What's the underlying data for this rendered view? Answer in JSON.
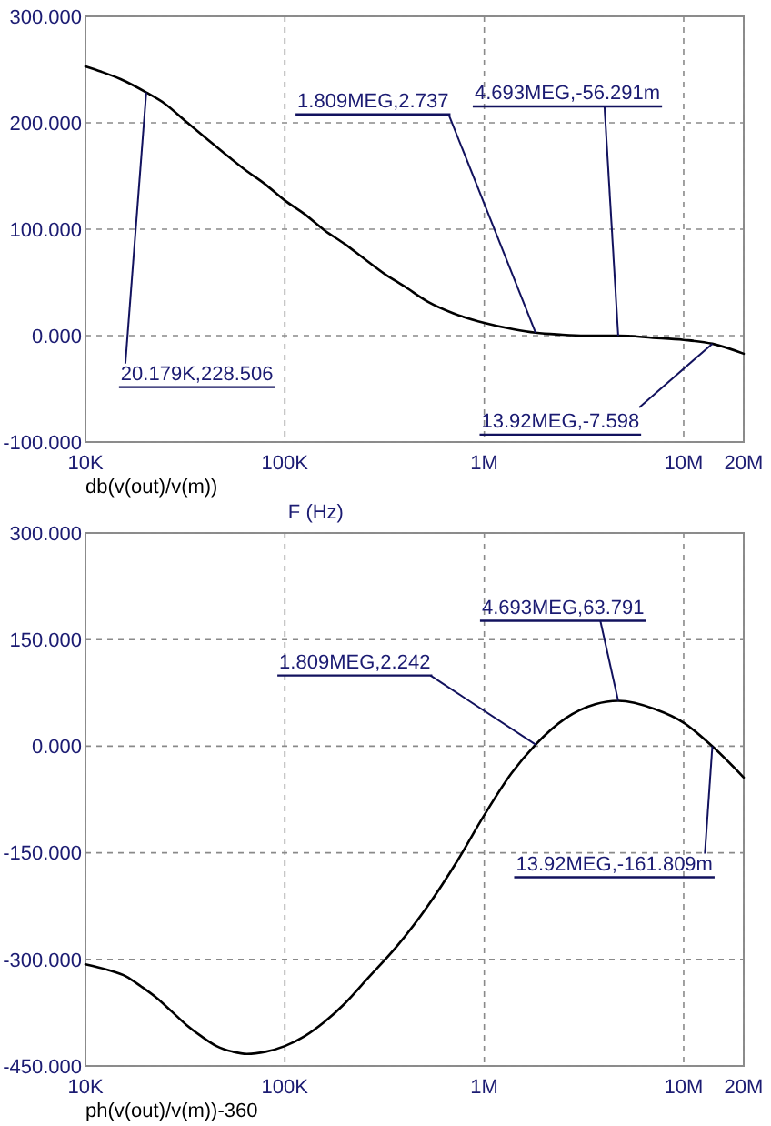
{
  "chart_data": [
    {
      "type": "line",
      "xlabel": "F (Hz)",
      "log": "x",
      "grid": true,
      "legend": "bottom left",
      "x": [
        10000,
        12000,
        15000,
        20179,
        25000,
        32000,
        40000,
        50000,
        63000,
        80000,
        100000,
        126000,
        158000,
        200000,
        251000,
        316000,
        400000,
        520000,
        700000,
        1000000,
        1400000,
        1809000,
        2400000,
        3200000,
        4693000,
        7000000,
        10000000,
        13920000,
        20000000
      ],
      "series": [
        {
          "name": "db(v(out)/v(m))",
          "color": "#000000",
          "values": [
            253,
            248,
            241,
            228.506,
            218,
            201,
            186,
            171,
            156,
            142,
            127,
            114,
            99,
            86,
            72,
            58,
            46,
            32,
            21,
            12,
            6,
            2.737,
            1,
            0,
            -0.056291,
            -2,
            -4,
            -7.598,
            -17
          ]
        }
      ],
      "xlim": [
        10000,
        20000000
      ],
      "xticks": [
        {
          "value": 10000,
          "label": "10K"
        },
        {
          "value": 100000,
          "label": "100K"
        },
        {
          "value": 1000000,
          "label": "1M"
        },
        {
          "value": 10000000,
          "label": "10M"
        },
        {
          "value": 20000000,
          "label": "20M"
        }
      ],
      "ylim": [
        -100,
        300
      ],
      "yticks": [
        {
          "value": -100,
          "label": "-100.000"
        },
        {
          "value": 0,
          "label": "0.000"
        },
        {
          "value": 100,
          "label": "100.000"
        },
        {
          "value": 200,
          "label": "200.000"
        },
        {
          "value": 300,
          "label": "300.000"
        }
      ],
      "annotations": [
        {
          "text": "20.179K,228.506",
          "x": 20179,
          "y": 228.506
        },
        {
          "text": "1.809MEG,2.737",
          "x": 1809000,
          "y": 2.737
        },
        {
          "text": "4.693MEG,-56.291m",
          "x": 4693000,
          "y": -0.056291
        },
        {
          "text": "13.92MEG,-7.598",
          "x": 13920000,
          "y": -7.598
        }
      ]
    },
    {
      "type": "line",
      "log": "x",
      "grid": true,
      "legend": "bottom left",
      "x": [
        10000,
        13000,
        16000,
        19000,
        22700,
        27000,
        32000,
        38000,
        45400,
        55000,
        64500,
        80000,
        100000,
        126000,
        158000,
        200000,
        258000,
        366000,
        517000,
        730000,
        1000000,
        1370000,
        1809000,
        2550000,
        3600000,
        4693000,
        7200000,
        10000000,
        13920000,
        20000000
      ],
      "series": [
        {
          "name": "ph(v(out)/v(m))-360",
          "color": "#000000",
          "values": [
            -307,
            -315,
            -324,
            -338,
            -354,
            -373,
            -392,
            -408,
            -422,
            -430,
            -433,
            -430,
            -422,
            -408,
            -388,
            -362,
            -328,
            -281,
            -226,
            -162,
            -97,
            -38,
            2.242,
            39,
            59,
            63.791,
            52,
            33,
            -0.161809,
            -44
          ]
        }
      ],
      "xlim": [
        10000,
        20000000
      ],
      "xticks": [
        {
          "value": 10000,
          "label": "10K"
        },
        {
          "value": 100000,
          "label": "100K"
        },
        {
          "value": 1000000,
          "label": "1M"
        },
        {
          "value": 10000000,
          "label": "10M"
        },
        {
          "value": 20000000,
          "label": "20M"
        }
      ],
      "ylim": [
        -450,
        300
      ],
      "yticks": [
        {
          "value": -450,
          "label": "-450.000"
        },
        {
          "value": -300,
          "label": "-300.000"
        },
        {
          "value": -150,
          "label": "-150.000"
        },
        {
          "value": 0,
          "label": "0.000"
        },
        {
          "value": 150,
          "label": "150.000"
        },
        {
          "value": 300,
          "label": "300.000"
        }
      ],
      "annotations": [
        {
          "text": "1.809MEG,2.242",
          "x": 1809000,
          "y": 2.242
        },
        {
          "text": "4.693MEG,63.791",
          "x": 4693000,
          "y": 63.791
        },
        {
          "text": "13.92MEG,-161.809m",
          "x": 13920000,
          "y": -0.161809
        }
      ]
    }
  ]
}
